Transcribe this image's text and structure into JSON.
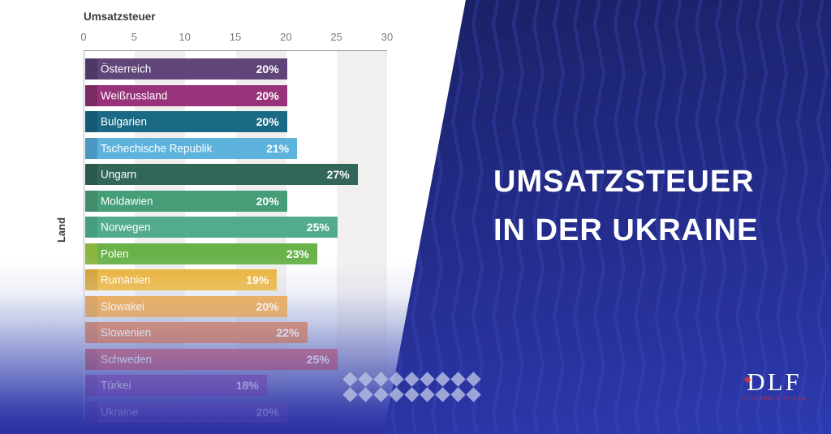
{
  "chart_data": {
    "type": "bar",
    "orientation": "horizontal",
    "title": "Umsatzsteuer",
    "xlabel": "Umsatzsteuer",
    "ylabel": "Land",
    "xlim": [
      0,
      30
    ],
    "x_ticks": [
      "0",
      "5",
      "10",
      "15",
      "20",
      "25",
      "30"
    ],
    "plot_bands": [
      [
        5,
        10
      ],
      [
        15,
        20
      ],
      [
        25,
        30
      ]
    ],
    "grid": "shaded vertical bands",
    "legend": "none",
    "categories": [
      "Österreich",
      "Weißrussland",
      "Bulgarien",
      "Tschechische Republik",
      "Ungarn",
      "Moldawien",
      "Norwegen",
      "Polen",
      "Rumänien",
      "Slowakei",
      "Slowenien",
      "Schweden",
      "Türkei",
      "Ukraine"
    ],
    "values": [
      20,
      20,
      20,
      21,
      27,
      20,
      25,
      23,
      19,
      20,
      22,
      25,
      18,
      20
    ],
    "value_labels": [
      "20%",
      "20%",
      "20%",
      "21%",
      "27%",
      "20%",
      "25%",
      "23%",
      "19%",
      "20%",
      "22%",
      "25%",
      "18%",
      "20%"
    ],
    "bar_colors": [
      "#60457a",
      "#98327a",
      "#1a6a85",
      "#5eb3dd",
      "#326659",
      "#469e79",
      "#52ab8d",
      "#69b24a",
      "#e9af2e",
      "#ee9b31",
      "#d66a40",
      "#bc4060",
      "#7d3aa6",
      "#7b52b8"
    ],
    "bar_cap_colors": [
      "#4d3866",
      "#7c2a62",
      "#145a74",
      "#4a97c2",
      "#2b574c",
      "#3f8d6b",
      "#479e7e",
      "#8ab63f",
      "#cf9a2b",
      "#d88e2e",
      "#c25e3b",
      "#a33552",
      "#6c2f93",
      "#5f3fa0"
    ]
  },
  "panel": {
    "headline_line1": "UMSATZSTEUER",
    "headline_line2": "IN DER UKRAINE",
    "background": "#1c2366",
    "zigzag_color": "#4150c0",
    "logo": {
      "text": "DLF",
      "tagline": "ATTORNEYS-AT-LAW",
      "accent_color": "#c4313e"
    }
  },
  "colors": {
    "fade_blue": "#2e34a4",
    "stripe_gray": "#ecebe9",
    "diamond": "#b9c0e6",
    "headline_text": "#ffffff",
    "axis_text": "#7a7a7a",
    "title_text": "#3b3b3b"
  }
}
